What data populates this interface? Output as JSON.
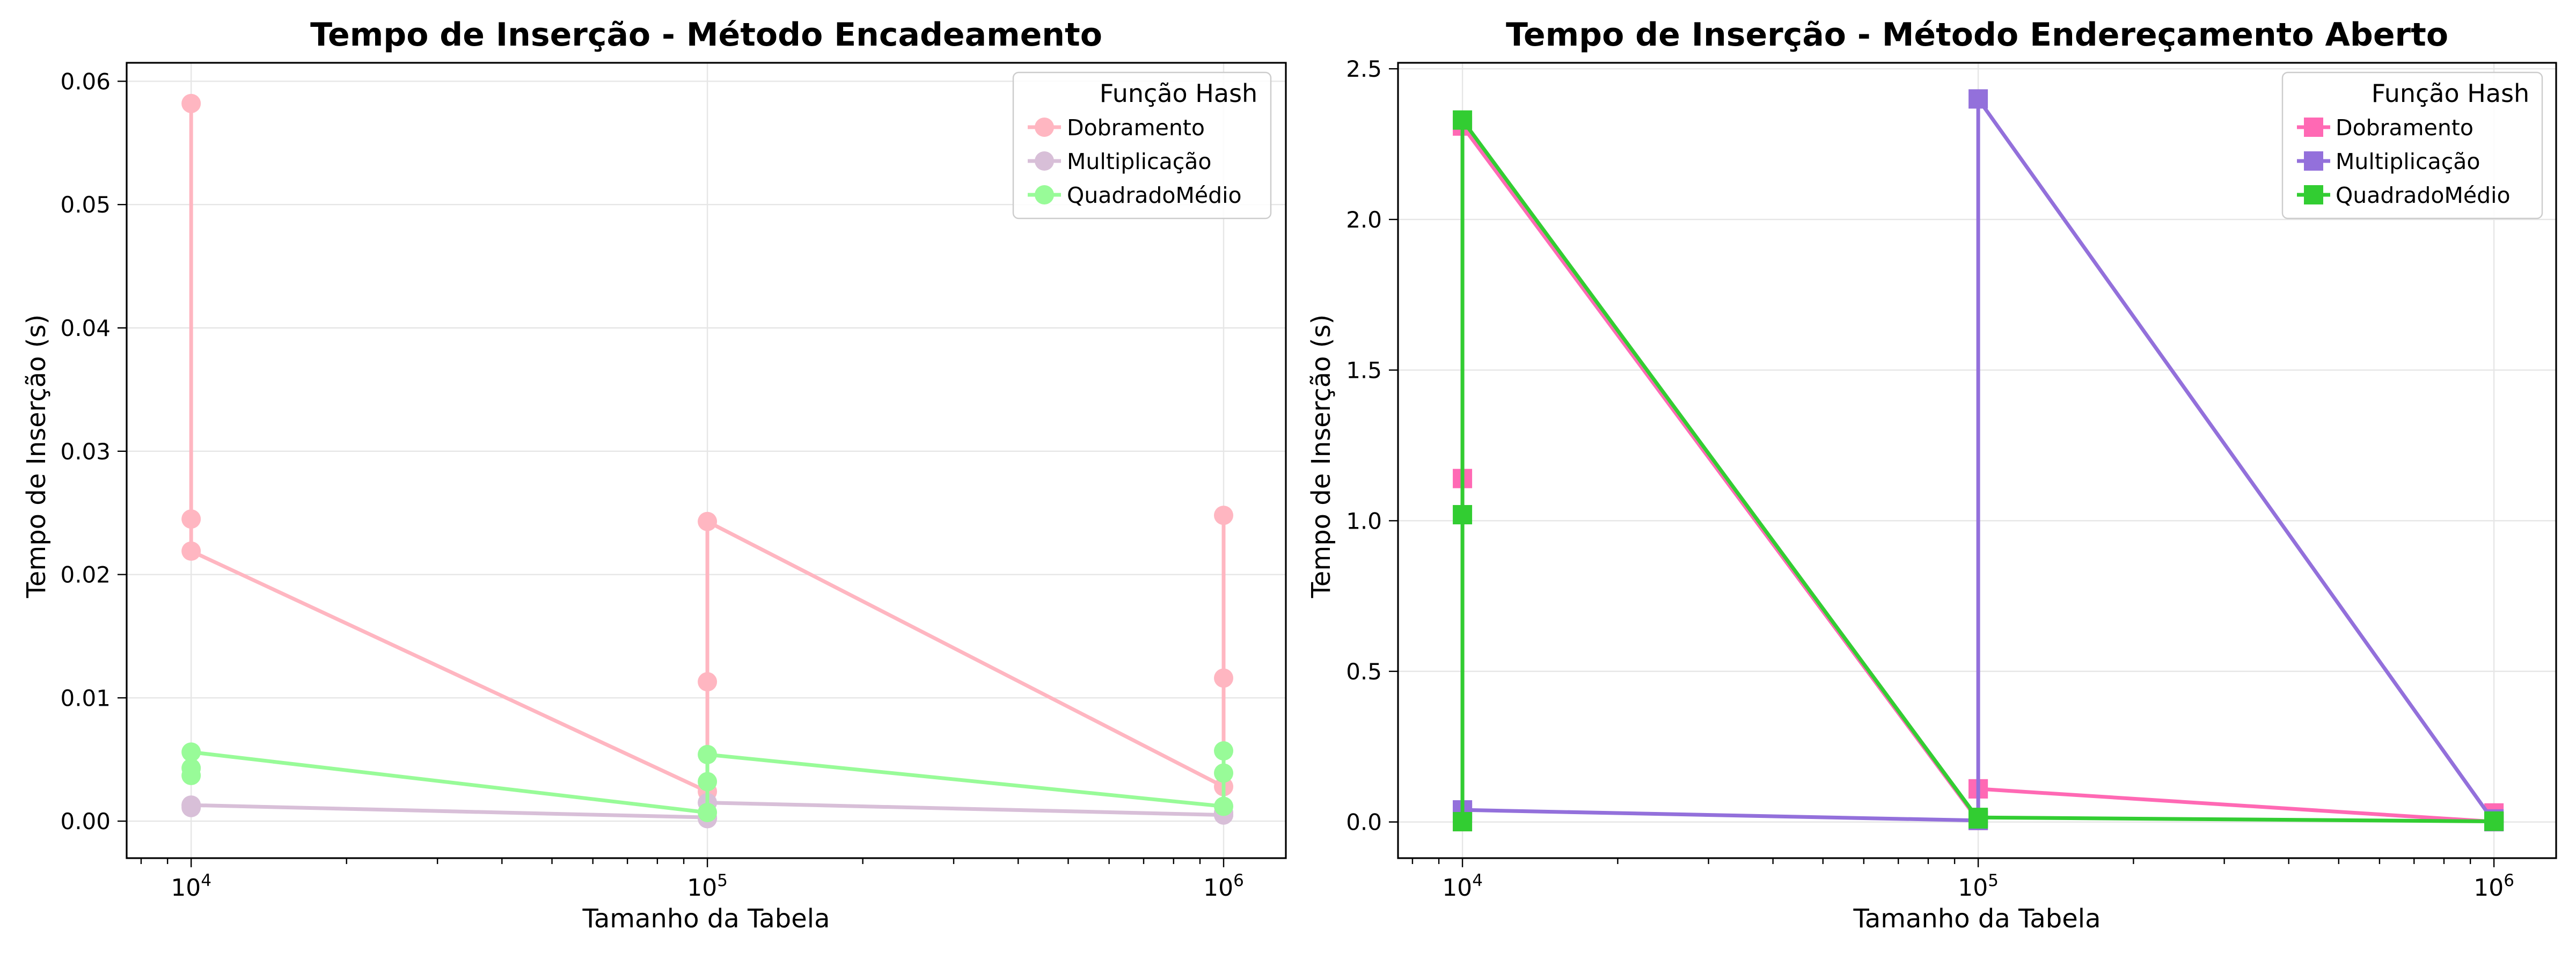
{
  "chart_data": [
    {
      "type": "line",
      "title": "Tempo de Inserção - Método Encadeamento",
      "xlabel": "Tamanho da Tabela",
      "ylabel": "Tempo de Inserção (s)",
      "xscale": "log",
      "xlim": [
        7500,
        1320000
      ],
      "ylim": [
        -0.003,
        0.0615
      ],
      "xticks": [
        10000,
        100000,
        1000000
      ],
      "xtick_labels": [
        {
          "base": "10",
          "exp": "4"
        },
        {
          "base": "10",
          "exp": "5"
        },
        {
          "base": "10",
          "exp": "6"
        }
      ],
      "yticks": [
        0.0,
        0.01,
        0.02,
        0.03,
        0.04,
        0.05,
        0.06
      ],
      "ytick_labels": [
        "0.00",
        "0.01",
        "0.02",
        "0.03",
        "0.04",
        "0.05",
        "0.06"
      ],
      "grid": true,
      "marker": "circle",
      "legend": {
        "title": "Função Hash",
        "placement": "top-right"
      },
      "series": [
        {
          "name": "Dobramento",
          "color": "#ffb6c1",
          "x": [
            10000,
            10000,
            10000,
            100000,
            100000,
            100000,
            1000000,
            1000000,
            1000000
          ],
          "y": [
            0.0582,
            0.0245,
            0.0219,
            0.0024,
            0.0113,
            0.0243,
            0.0028,
            0.0116,
            0.0248
          ]
        },
        {
          "name": "Multiplicação",
          "color": "#d8bfd8",
          "x": [
            10000,
            10000,
            10000,
            100000,
            100000,
            100000,
            1000000,
            1000000,
            1000000
          ],
          "y": [
            0.0013,
            0.0011,
            0.0013,
            0.0003,
            0.0002,
            0.0015,
            0.0005,
            0.0007,
            0.0005
          ]
        },
        {
          "name": "QuadradoMédio",
          "color": "#98fb98",
          "x": [
            10000,
            10000,
            10000,
            100000,
            100000,
            100000,
            1000000,
            1000000,
            1000000
          ],
          "y": [
            0.0037,
            0.0043,
            0.0056,
            0.0007,
            0.0032,
            0.0054,
            0.0012,
            0.0039,
            0.0057
          ]
        }
      ]
    },
    {
      "type": "line",
      "title": "Tempo de Inserção - Método Endereçamento Aberto",
      "xlabel": "Tamanho da Tabela",
      "ylabel": "Tempo de Inserção (s)",
      "xscale": "log",
      "xlim": [
        7500,
        1320000
      ],
      "ylim": [
        -0.12,
        2.52
      ],
      "xticks": [
        10000,
        100000,
        1000000
      ],
      "xtick_labels": [
        {
          "base": "10",
          "exp": "4"
        },
        {
          "base": "10",
          "exp": "5"
        },
        {
          "base": "10",
          "exp": "6"
        }
      ],
      "yticks": [
        0.0,
        0.5,
        1.0,
        1.5,
        2.0,
        2.5
      ],
      "ytick_labels": [
        "0.0",
        "0.5",
        "1.0",
        "1.5",
        "2.0",
        "2.5"
      ],
      "grid": true,
      "marker": "square",
      "legend": {
        "title": "Função Hash",
        "placement": "top-right"
      },
      "series": [
        {
          "name": "Dobramento",
          "color": "#ff69b4",
          "x": [
            10000,
            10000,
            10000,
            100000,
            100000,
            100000,
            1000000,
            1000000,
            1000000
          ],
          "y": [
            0.001,
            1.14,
            2.31,
            0.005,
            0.11,
            0.11,
            0.001,
            0.002,
            0.03
          ]
        },
        {
          "name": "Multiplicação",
          "color": "#9370db",
          "x": [
            10000,
            10000,
            10000,
            100000,
            100000,
            100000,
            1000000,
            1000000,
            1000000
          ],
          "y": [
            0.03,
            0.04,
            0.04,
            0.005,
            0.007,
            2.4,
            0.001,
            0.002,
            0.01
          ]
        },
        {
          "name": "QuadradoMédio",
          "color": "#32cd32",
          "x": [
            10000,
            10000,
            10000,
            100000,
            100000,
            100000,
            1000000,
            1000000,
            1000000
          ],
          "y": [
            0.001,
            1.02,
            2.33,
            0.01,
            0.015,
            0.015,
            0.002,
            0.003,
            0.003
          ]
        }
      ]
    }
  ]
}
